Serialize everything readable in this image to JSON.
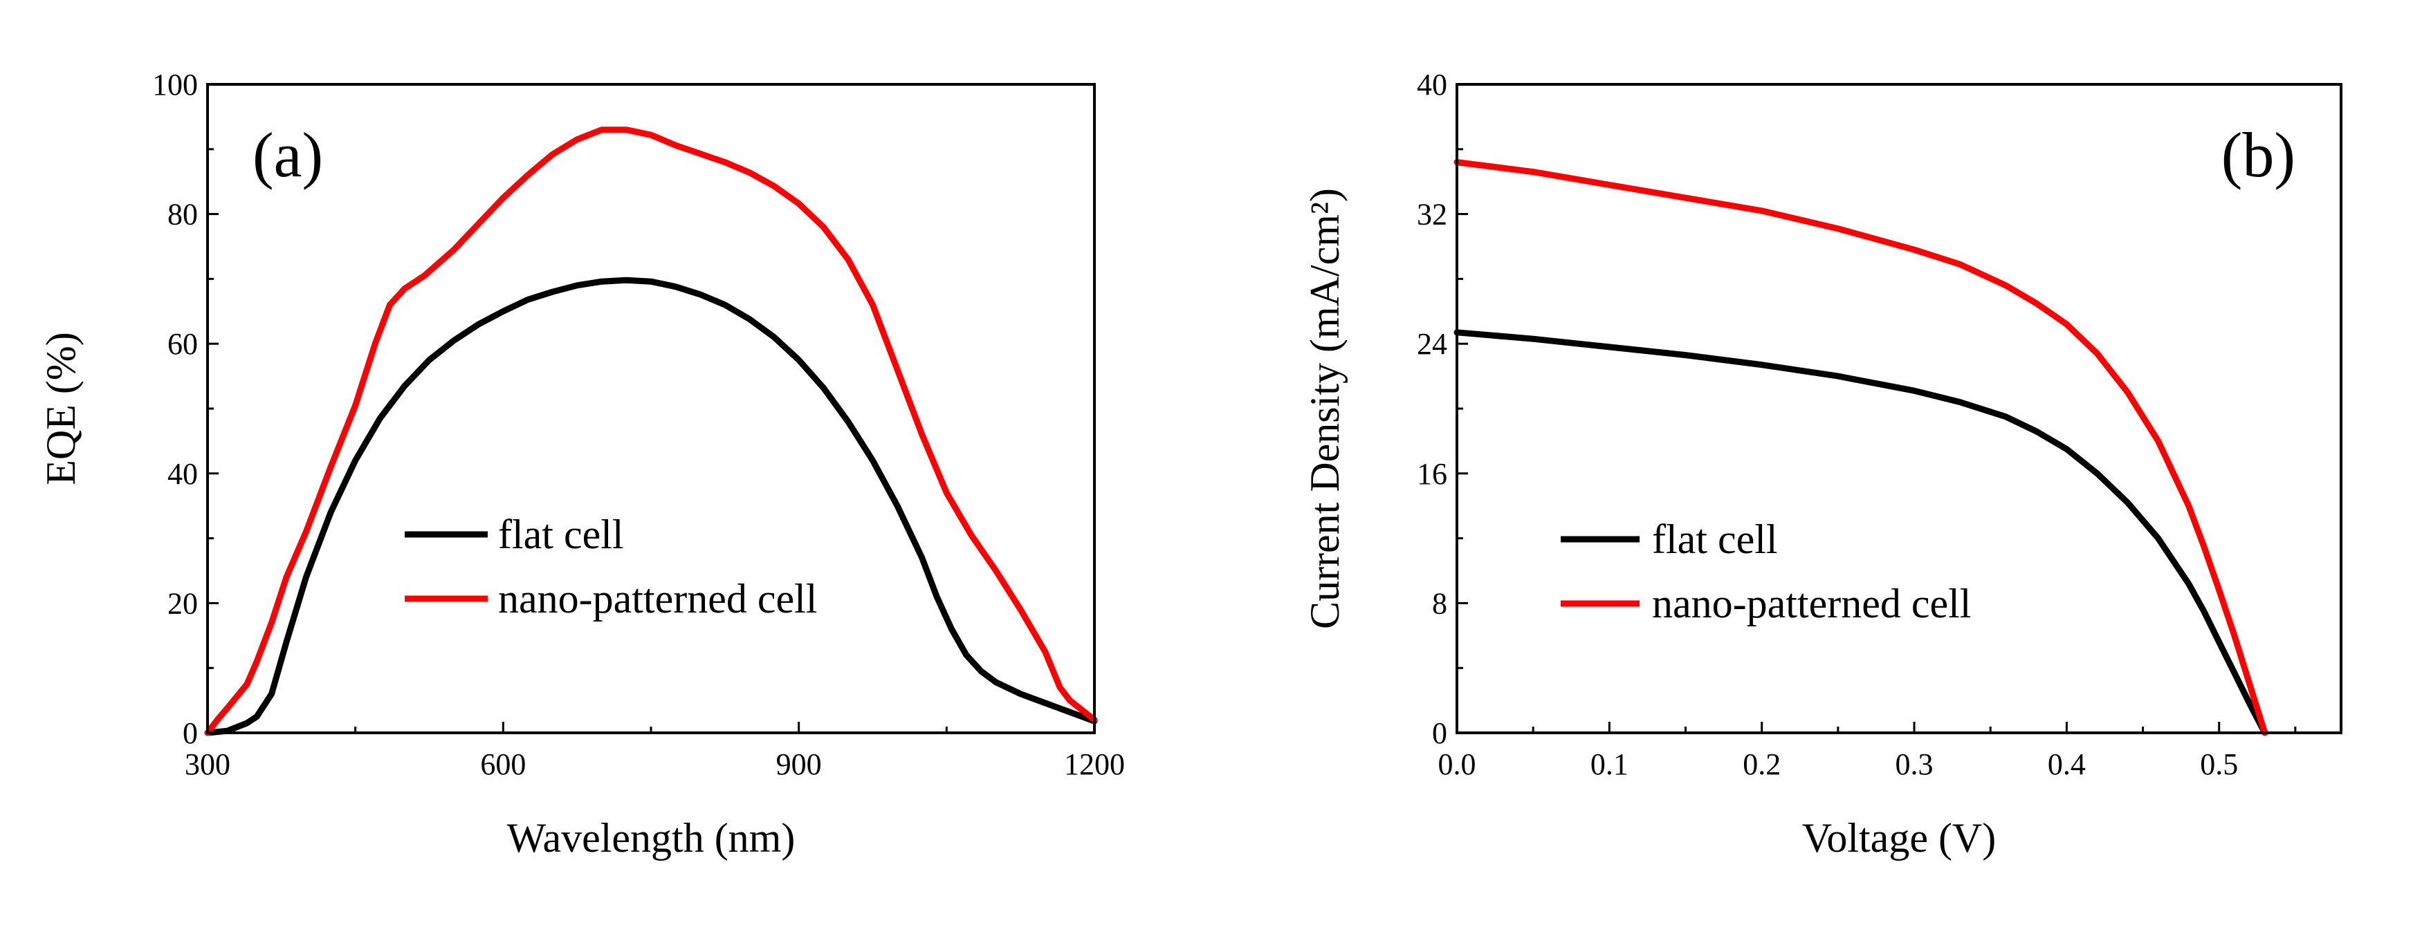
{
  "chart_data": [
    {
      "type": "line",
      "panel_label": "(a)",
      "xlabel": "Wavelength (nm)",
      "ylabel": "EQE (%)",
      "xlim": [
        300,
        1200
      ],
      "ylim": [
        0,
        100
      ],
      "xticks": [
        300,
        600,
        900,
        1200
      ],
      "yticks": [
        0,
        20,
        40,
        60,
        80,
        100
      ],
      "grid": false,
      "legend_position": "center-right",
      "series": [
        {
          "name": "flat cell",
          "color": "#000000",
          "points": [
            [
              300,
              0
            ],
            [
              320,
              0.3
            ],
            [
              340,
              1.5
            ],
            [
              350,
              2.5
            ],
            [
              365,
              6
            ],
            [
              380,
              14
            ],
            [
              400,
              24
            ],
            [
              425,
              34
            ],
            [
              450,
              42
            ],
            [
              475,
              48.5
            ],
            [
              500,
              53.5
            ],
            [
              525,
              57.5
            ],
            [
              550,
              60.5
            ],
            [
              575,
              63
            ],
            [
              600,
              65
            ],
            [
              625,
              66.8
            ],
            [
              650,
              68
            ],
            [
              675,
              69
            ],
            [
              700,
              69.6
            ],
            [
              725,
              69.8
            ],
            [
              750,
              69.6
            ],
            [
              775,
              68.8
            ],
            [
              800,
              67.6
            ],
            [
              825,
              66
            ],
            [
              850,
              63.8
            ],
            [
              875,
              61
            ],
            [
              900,
              57.5
            ],
            [
              925,
              53.2
            ],
            [
              950,
              48
            ],
            [
              975,
              42
            ],
            [
              1000,
              35
            ],
            [
              1025,
              27
            ],
            [
              1040,
              21
            ],
            [
              1055,
              16
            ],
            [
              1070,
              12
            ],
            [
              1085,
              9.5
            ],
            [
              1100,
              7.8
            ],
            [
              1125,
              6
            ],
            [
              1150,
              4.6
            ],
            [
              1175,
              3.2
            ],
            [
              1200,
              1.8
            ]
          ]
        },
        {
          "name": "nano-patterned cell",
          "color": "#ff0000",
          "points": [
            [
              300,
              0
            ],
            [
              310,
              2
            ],
            [
              320,
              3.8
            ],
            [
              340,
              7.5
            ],
            [
              350,
              11
            ],
            [
              365,
              17
            ],
            [
              380,
              24
            ],
            [
              400,
              31
            ],
            [
              425,
              41
            ],
            [
              450,
              50.5
            ],
            [
              470,
              60
            ],
            [
              485,
              66
            ],
            [
              500,
              68.5
            ],
            [
              520,
              70.5
            ],
            [
              550,
              74.5
            ],
            [
              575,
              78.5
            ],
            [
              600,
              82.5
            ],
            [
              625,
              86
            ],
            [
              650,
              89.2
            ],
            [
              675,
              91.5
            ],
            [
              700,
              93
            ],
            [
              725,
              93
            ],
            [
              750,
              92.2
            ],
            [
              775,
              90.6
            ],
            [
              800,
              89.3
            ],
            [
              825,
              88
            ],
            [
              850,
              86.4
            ],
            [
              875,
              84.3
            ],
            [
              900,
              81.6
            ],
            [
              925,
              78
            ],
            [
              950,
              73
            ],
            [
              975,
              66
            ],
            [
              1000,
              56
            ],
            [
              1025,
              46
            ],
            [
              1050,
              37
            ],
            [
              1075,
              30.5
            ],
            [
              1100,
              25
            ],
            [
              1125,
              19
            ],
            [
              1150,
              12.5
            ],
            [
              1165,
              7
            ],
            [
              1175,
              5
            ],
            [
              1200,
              2
            ]
          ]
        }
      ]
    },
    {
      "type": "line",
      "panel_label": "(b)",
      "xlabel": "Voltage (V)",
      "ylabel": "Current Density (mA/cm²)",
      "xlim": [
        0.0,
        0.58
      ],
      "ylim": [
        0,
        40
      ],
      "xticks": [
        0.0,
        0.1,
        0.2,
        0.3,
        0.4,
        0.5
      ],
      "yticks": [
        0,
        8,
        16,
        24,
        32,
        40
      ],
      "grid": false,
      "legend_position": "bottom-left",
      "series": [
        {
          "name": "flat cell",
          "color": "#000000",
          "points": [
            [
              0.0,
              24.7
            ],
            [
              0.05,
              24.3
            ],
            [
              0.1,
              23.8
            ],
            [
              0.15,
              23.3
            ],
            [
              0.2,
              22.7
            ],
            [
              0.25,
              22.0
            ],
            [
              0.3,
              21.1
            ],
            [
              0.33,
              20.4
            ],
            [
              0.36,
              19.5
            ],
            [
              0.38,
              18.6
            ],
            [
              0.4,
              17.5
            ],
            [
              0.42,
              16.0
            ],
            [
              0.44,
              14.2
            ],
            [
              0.46,
              12.0
            ],
            [
              0.48,
              9.2
            ],
            [
              0.49,
              7.5
            ],
            [
              0.5,
              5.6
            ],
            [
              0.51,
              3.7
            ],
            [
              0.52,
              1.8
            ],
            [
              0.53,
              0
            ]
          ]
        },
        {
          "name": "nano-patterned cell",
          "color": "#ff0000",
          "points": [
            [
              0.0,
              35.2
            ],
            [
              0.05,
              34.6
            ],
            [
              0.1,
              33.8
            ],
            [
              0.15,
              33.0
            ],
            [
              0.2,
              32.2
            ],
            [
              0.25,
              31.1
            ],
            [
              0.3,
              29.8
            ],
            [
              0.33,
              28.9
            ],
            [
              0.36,
              27.6
            ],
            [
              0.38,
              26.5
            ],
            [
              0.4,
              25.2
            ],
            [
              0.42,
              23.4
            ],
            [
              0.44,
              21.0
            ],
            [
              0.46,
              18.0
            ],
            [
              0.48,
              14.0
            ],
            [
              0.49,
              11.5
            ],
            [
              0.5,
              8.8
            ],
            [
              0.51,
              6.0
            ],
            [
              0.52,
              3.0
            ],
            [
              0.53,
              0
            ]
          ]
        }
      ]
    }
  ]
}
